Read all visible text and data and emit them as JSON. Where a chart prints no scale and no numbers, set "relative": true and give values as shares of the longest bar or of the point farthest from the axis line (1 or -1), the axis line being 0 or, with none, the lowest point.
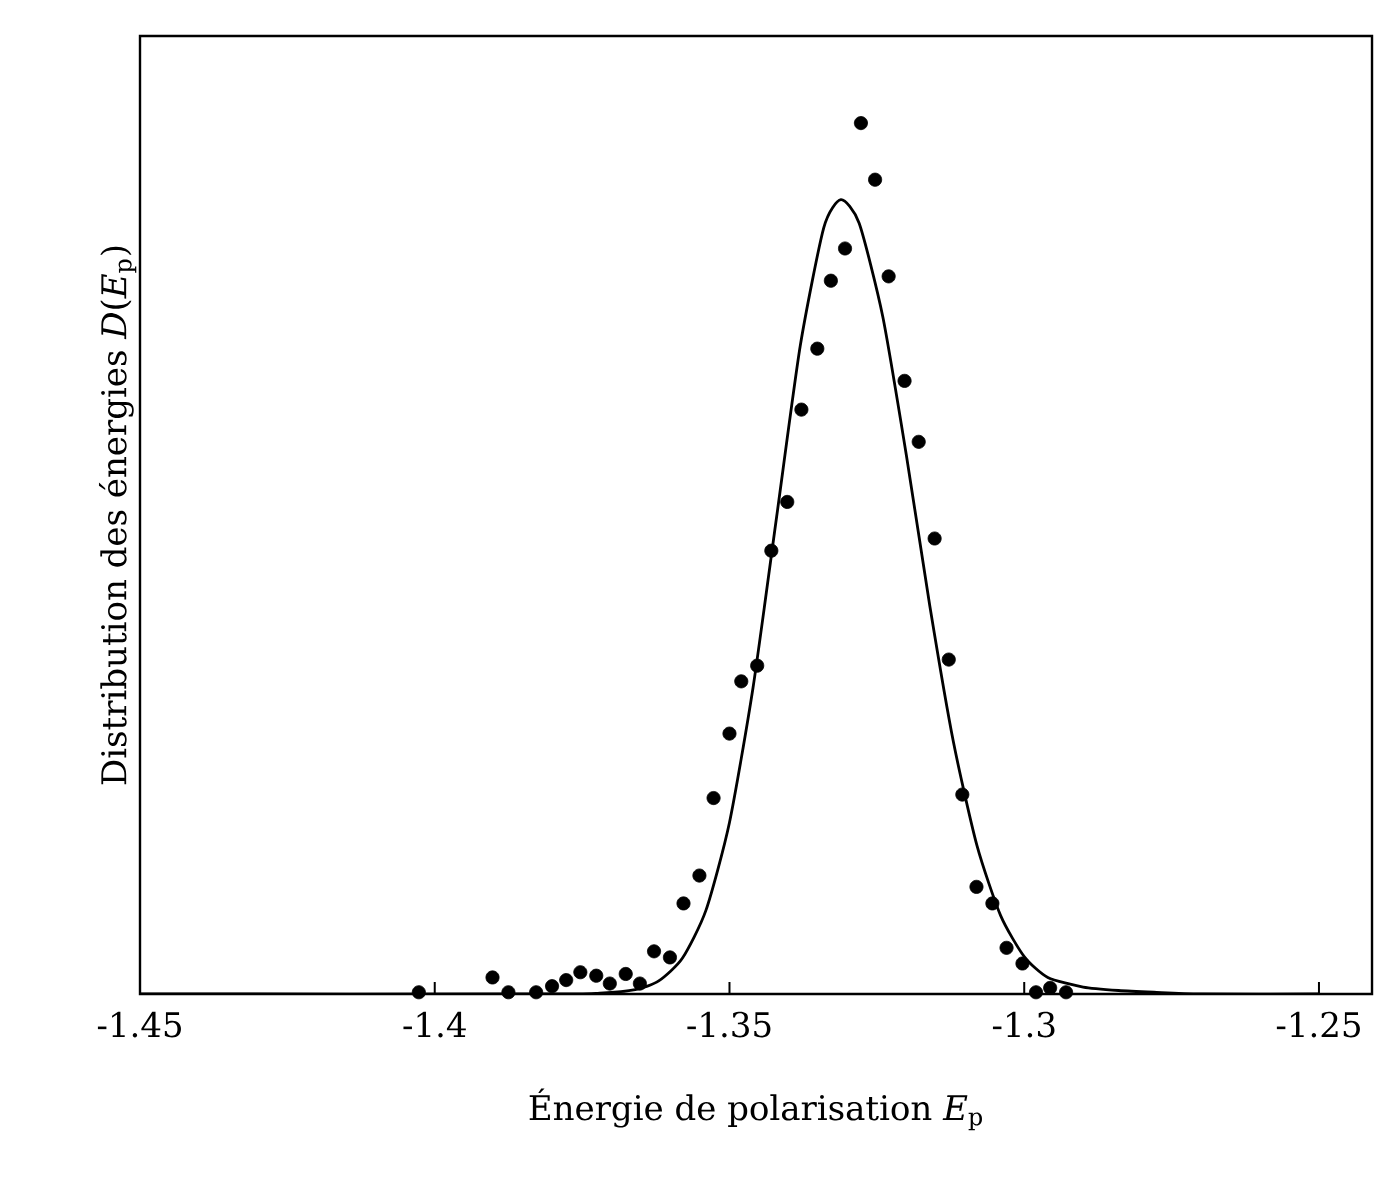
{
  "chart_data": {
    "type": "scatter",
    "relative": true,
    "xlabel": "Énergie de polarisation *E*$_{p}$",
    "ylabel": "Distribution des énergies *D*(*E*$_{p}$)",
    "xlim": [
      -1.45,
      -1.241
    ],
    "xticks": [
      -1.45,
      -1.4,
      -1.35,
      -1.3,
      -1.25
    ],
    "line_style": "solid",
    "grid": false,
    "series": [
      {
        "marker": "circle",
        "color": "#000000",
        "x": [
          -1.4027,
          -1.3902,
          -1.3875,
          -1.3828,
          -1.3801,
          -1.3777,
          -1.3753,
          -1.3726,
          -1.3703,
          -1.3676,
          -1.3652,
          -1.3628,
          -1.3601,
          -1.3578,
          -1.3551,
          -1.3527,
          -1.35,
          -1.348,
          -1.3453,
          -1.3429,
          -1.3402,
          -1.3378,
          -1.3351,
          -1.3328,
          -1.3304,
          -1.3277,
          -1.3253,
          -1.323,
          -1.3203,
          -1.3179,
          -1.3152,
          -1.3128,
          -1.3105,
          -1.3081,
          -1.3054,
          -1.303,
          -1.3003,
          -1.298,
          -1.2956,
          -1.2929
        ],
        "values": [
          0.002,
          0.019,
          0.002,
          0.002,
          0.009,
          0.016,
          0.025,
          0.021,
          0.012,
          0.023,
          0.012,
          0.049,
          0.042,
          0.104,
          0.136,
          0.225,
          0.299,
          0.359,
          0.377,
          0.509,
          0.565,
          0.671,
          0.741,
          0.819,
          0.856,
          1.0,
          0.935,
          0.824,
          0.704,
          0.634,
          0.523,
          0.384,
          0.229,
          0.123,
          0.104,
          0.053,
          0.035,
          0.002,
          0.007,
          0.002
        ]
      },
      {
        "type": "line",
        "marker": "none",
        "color": "#000000",
        "x": [
          -1.45,
          -1.38,
          -1.372,
          -1.366,
          -1.362,
          -1.358,
          -1.354,
          -1.35,
          -1.346,
          -1.342,
          -1.338,
          -1.334,
          -1.3311,
          -1.328,
          -1.324,
          -1.32,
          -1.316,
          -1.312,
          -1.308,
          -1.304,
          -1.3,
          -1.296,
          -1.29,
          -1.284,
          -1.278,
          -1.27,
          -1.25
        ],
        "values": [
          0.0,
          0.0,
          0.001,
          0.005,
          0.015,
          0.041,
          0.096,
          0.197,
          0.352,
          0.548,
          0.744,
          0.88,
          0.912,
          0.885,
          0.778,
          0.619,
          0.445,
          0.289,
          0.17,
          0.09,
          0.043,
          0.019,
          0.008,
          0.004,
          0.002,
          0.0,
          0.0
        ]
      }
    ]
  }
}
